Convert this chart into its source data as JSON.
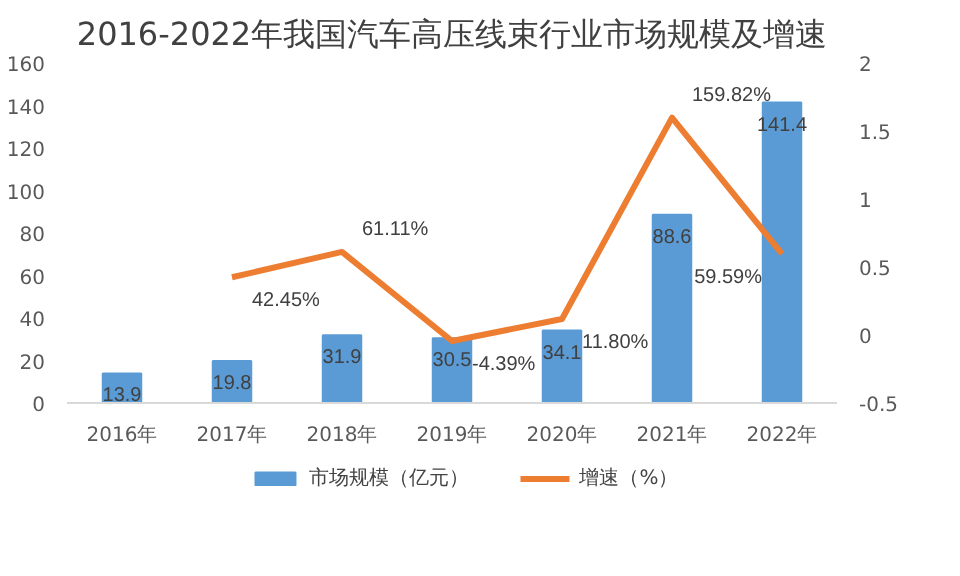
{
  "chart_data": {
    "type": "bar",
    "title": "2016-2022年我国汽车高压线束行业市场规模及增速",
    "categories": [
      "2016年",
      "2017年",
      "2018年",
      "2019年",
      "2020年",
      "2021年",
      "2022年"
    ],
    "series": [
      {
        "name": "市场规模（亿元）",
        "color": "#5b9bd5",
        "values": [
          13.9,
          19.8,
          31.9,
          30.5,
          34.1,
          88.6,
          141.4
        ],
        "value_labels": [
          "13.9",
          "19.8",
          "31.9",
          "30.5",
          "34.1",
          "88.6",
          "141.4"
        ]
      },
      {
        "name": "增速（%）",
        "type": "line",
        "axis": "y2",
        "color": "#ed7d31",
        "values": [
          null,
          0.4245,
          0.6111,
          -0.0439,
          0.118,
          1.5982,
          0.5959
        ],
        "value_labels": [
          null,
          "42.45%",
          "61.11%",
          "-4.39%",
          "11.80%",
          "159.82%",
          "59.59%"
        ]
      }
    ],
    "ylim": [
      0,
      160
    ],
    "yticks": [
      0,
      20,
      40,
      60,
      80,
      100,
      120,
      140,
      160
    ],
    "y2lim": [
      -0.5,
      2
    ],
    "y2ticks": [
      -0.5,
      0,
      0.5,
      1,
      1.5,
      2
    ],
    "grid": false,
    "legend": "bottom",
    "marker": "none",
    "line_style": "solid"
  }
}
